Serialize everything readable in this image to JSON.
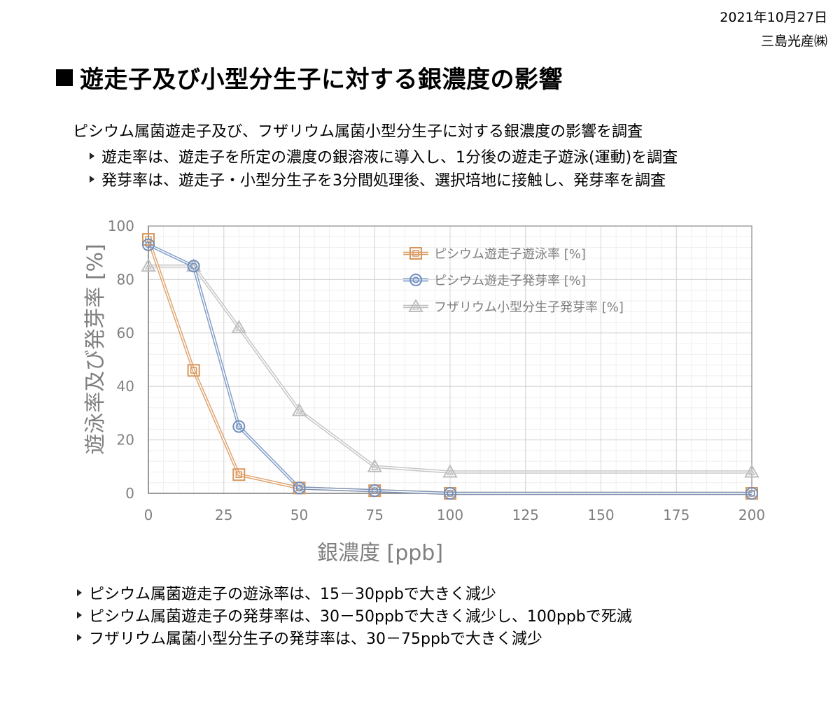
{
  "header": {
    "date": "2021年10月27日",
    "company": "三島光産㈱",
    "title": "遊走子及び小型分生子に対する銀濃度の影響"
  },
  "intro": "ピシウム属菌遊走子及び、フザリウム属菌小型分生子に対する銀濃度の影響を調査",
  "methods": [
    "遊走率は、遊走子を所定の濃度の銀溶液に導入し、1分後の遊走子遊泳(運動)を調査",
    "発芽率は、遊走子・小型分生子を3分間処理後、選択培地に接触し、発芽率を調査"
  ],
  "conclusions": [
    "ピシウム属菌遊走子の遊泳率は、15－30ppbで大きく減少",
    "ピシウム属菌遊走子の発芽率は、30－50ppbで大きく減少し、100ppbで死滅",
    "フザリウム属菌小型分生子の発芽率は、30－75ppbで大きく減少"
  ],
  "chart_data": {
    "type": "scatter",
    "xlabel": "銀濃度 [ppb]",
    "ylabel": "遊泳率及び発芽率 [%]",
    "xlim": [
      0,
      200
    ],
    "ylim": [
      0,
      100
    ],
    "xticks": [
      0,
      25,
      50,
      75,
      100,
      125,
      150,
      175,
      200
    ],
    "yticks": [
      0,
      20,
      40,
      60,
      80,
      100
    ],
    "grid": true,
    "legend_position": "top-right",
    "series": [
      {
        "name": "ピシウム遊走子遊泳率 [%]",
        "marker": "square",
        "color": "#d9965b",
        "x": [
          0,
          15,
          30,
          50,
          75,
          100,
          200
        ],
        "y": [
          95,
          46,
          7,
          2,
          1,
          0,
          0
        ]
      },
      {
        "name": "ピシウム遊走子発芽率 [%]",
        "marker": "circle",
        "color": "#6f8fbf",
        "x": [
          0,
          15,
          30,
          50,
          75,
          100,
          200
        ],
        "y": [
          93,
          85,
          25,
          2,
          1,
          0,
          0
        ]
      },
      {
        "name": "フザリウム小型分生子発芽率 [%]",
        "marker": "triangle",
        "color": "#bdbdbd",
        "x": [
          0,
          15,
          30,
          50,
          75,
          100,
          200
        ],
        "y": [
          85,
          85,
          62,
          31,
          10,
          8,
          8
        ]
      }
    ]
  }
}
